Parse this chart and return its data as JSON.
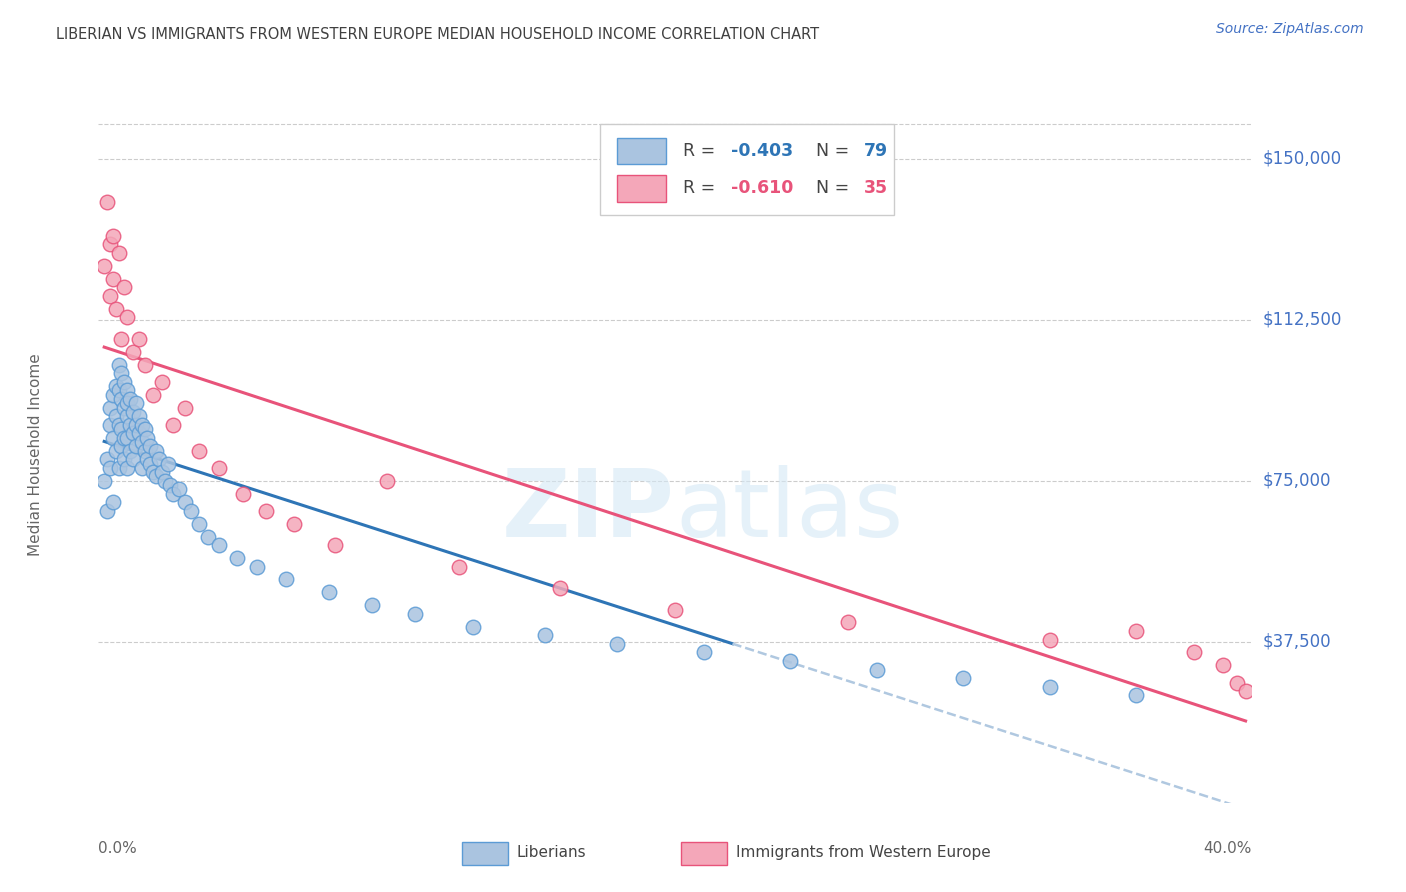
{
  "title": "LIBERIAN VS IMMIGRANTS FROM WESTERN EUROPE MEDIAN HOUSEHOLD INCOME CORRELATION CHART",
  "source": "Source: ZipAtlas.com",
  "ylabel": "Median Household Income",
  "xlim": [
    0.0,
    0.4
  ],
  "ylim": [
    0,
    162000
  ],
  "watermark": "ZIPatlas",
  "blue_scatter_color": "#aac4e0",
  "blue_edge_color": "#5b9bd5",
  "pink_scatter_color": "#f4a7b9",
  "pink_edge_color": "#e8537a",
  "blue_line_color": "#2e75b6",
  "pink_line_color": "#e8537a",
  "dashed_line_color": "#b0c8e0",
  "grid_color": "#cccccc",
  "ytick_color": "#4472c4",
  "title_color": "#404040",
  "label_color": "#666666",
  "liberian_x": [
    0.002,
    0.003,
    0.003,
    0.004,
    0.004,
    0.004,
    0.005,
    0.005,
    0.005,
    0.006,
    0.006,
    0.006,
    0.007,
    0.007,
    0.007,
    0.007,
    0.008,
    0.008,
    0.008,
    0.008,
    0.009,
    0.009,
    0.009,
    0.009,
    0.01,
    0.01,
    0.01,
    0.01,
    0.01,
    0.011,
    0.011,
    0.011,
    0.012,
    0.012,
    0.012,
    0.013,
    0.013,
    0.013,
    0.014,
    0.014,
    0.015,
    0.015,
    0.015,
    0.016,
    0.016,
    0.017,
    0.017,
    0.018,
    0.018,
    0.019,
    0.02,
    0.02,
    0.021,
    0.022,
    0.023,
    0.024,
    0.025,
    0.026,
    0.028,
    0.03,
    0.032,
    0.035,
    0.038,
    0.042,
    0.048,
    0.055,
    0.065,
    0.08,
    0.095,
    0.11,
    0.13,
    0.155,
    0.18,
    0.21,
    0.24,
    0.27,
    0.3,
    0.33,
    0.36
  ],
  "liberian_y": [
    75000,
    68000,
    80000,
    88000,
    92000,
    78000,
    85000,
    95000,
    70000,
    90000,
    97000,
    82000,
    96000,
    88000,
    102000,
    78000,
    94000,
    87000,
    100000,
    83000,
    92000,
    85000,
    98000,
    80000,
    96000,
    90000,
    85000,
    93000,
    78000,
    88000,
    94000,
    82000,
    86000,
    91000,
    80000,
    88000,
    93000,
    83000,
    86000,
    90000,
    84000,
    88000,
    78000,
    82000,
    87000,
    80000,
    85000,
    79000,
    83000,
    77000,
    82000,
    76000,
    80000,
    77000,
    75000,
    79000,
    74000,
    72000,
    73000,
    70000,
    68000,
    65000,
    62000,
    60000,
    57000,
    55000,
    52000,
    49000,
    46000,
    44000,
    41000,
    39000,
    37000,
    35000,
    33000,
    31000,
    29000,
    27000,
    25000
  ],
  "western_eu_x": [
    0.002,
    0.003,
    0.004,
    0.004,
    0.005,
    0.005,
    0.006,
    0.007,
    0.008,
    0.009,
    0.01,
    0.012,
    0.014,
    0.016,
    0.019,
    0.022,
    0.026,
    0.03,
    0.035,
    0.042,
    0.05,
    0.058,
    0.068,
    0.082,
    0.1,
    0.125,
    0.16,
    0.2,
    0.26,
    0.33,
    0.36,
    0.38,
    0.39,
    0.395,
    0.398
  ],
  "western_eu_y": [
    125000,
    140000,
    130000,
    118000,
    132000,
    122000,
    115000,
    128000,
    108000,
    120000,
    113000,
    105000,
    108000,
    102000,
    95000,
    98000,
    88000,
    92000,
    82000,
    78000,
    72000,
    68000,
    65000,
    60000,
    75000,
    55000,
    50000,
    45000,
    42000,
    38000,
    40000,
    35000,
    32000,
    28000,
    26000
  ]
}
